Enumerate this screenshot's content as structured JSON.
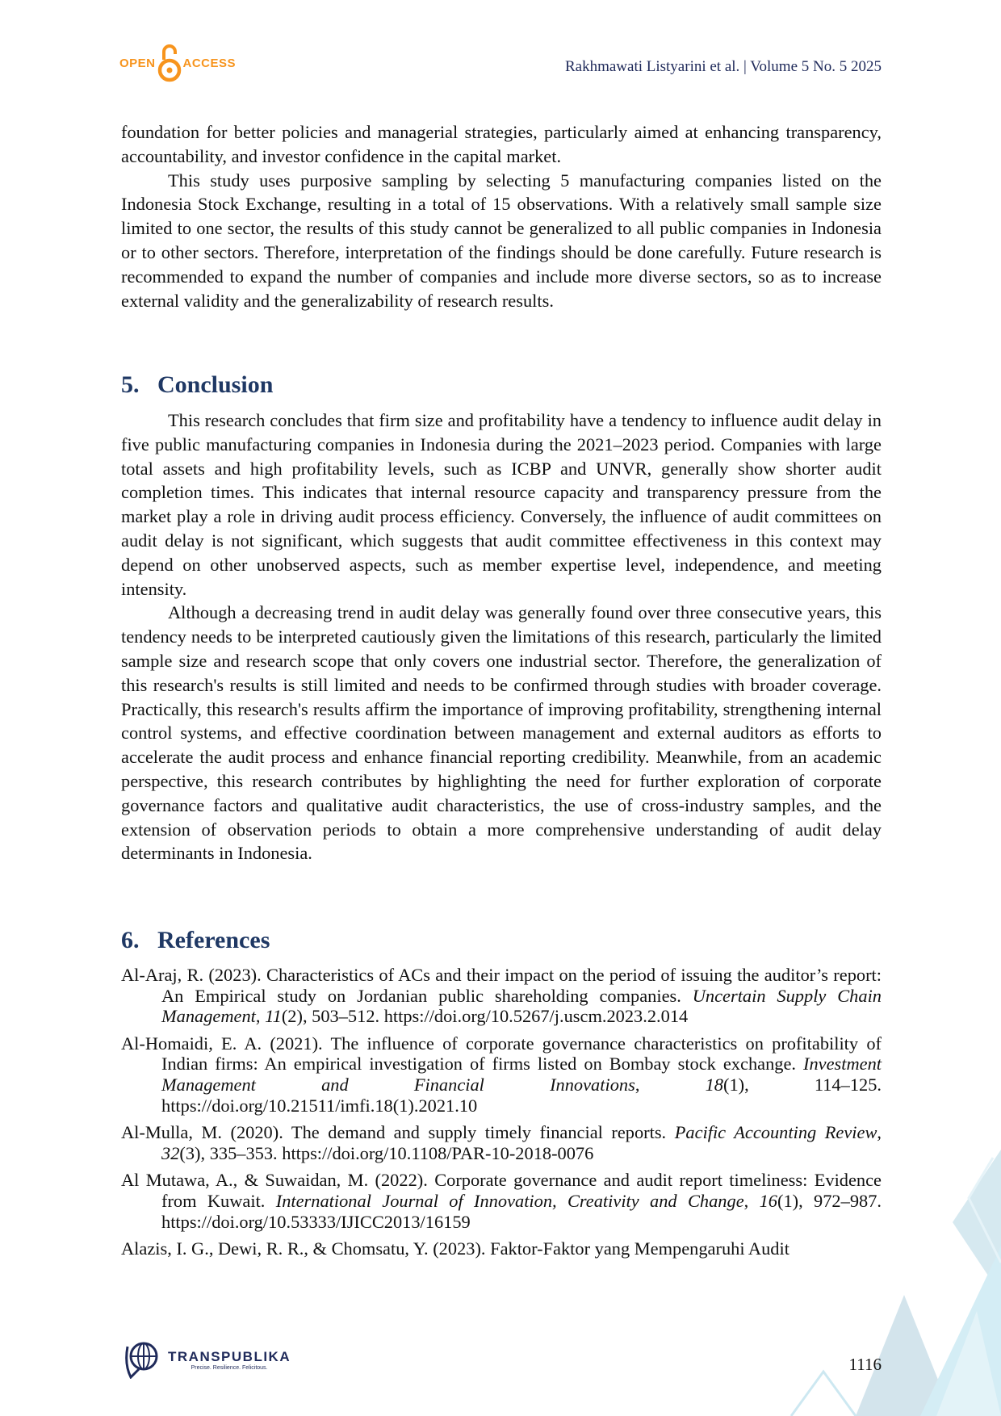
{
  "header": {
    "logo_left": "OPEN",
    "logo_right": "ACCESS",
    "running_head": "Rakhmawati Listyarini et al. | Volume 5 No. 5 2025"
  },
  "intro_paragraphs": [
    "foundation for better policies and managerial strategies, particularly aimed at enhancing transparency, accountability, and investor confidence in the capital market.",
    "This study uses purposive sampling by selecting 5 manufacturing companies listed on the Indonesia Stock Exchange, resulting in a total of 15 observations. With a relatively small sample size limited to one sector, the results of this study cannot be generalized to all public companies in Indonesia or to other sectors. Therefore, interpretation of the findings should be done carefully. Future research is recommended to expand the number of companies and include more diverse sectors, so as to increase external validity and the generalizability of research results."
  ],
  "conclusion": {
    "number": "5.",
    "title": "Conclusion",
    "paragraphs": [
      "This research concludes that firm size and profitability have a tendency to influence audit delay in five public manufacturing companies in Indonesia during the 2021–2023 period. Companies with large total assets and high profitability levels, such as ICBP and UNVR, generally show shorter audit completion times. This indicates that internal resource capacity and transparency pressure from the market play a role in driving audit process efficiency. Conversely, the influence of audit committees on audit delay is not significant, which suggests that audit committee effectiveness in this context may depend on other unobserved aspects, such as member expertise level, independence, and meeting intensity.",
      "Although a decreasing trend in audit delay was generally found over three consecutive years, this tendency needs to be interpreted cautiously given the limitations of this research, particularly the limited sample size and research scope that only covers one industrial sector. Therefore, the generalization of this research's results is still limited and needs to be confirmed through studies with broader coverage. Practically, this research's results affirm the importance of improving profitability, strengthening internal control systems, and effective coordination between management and external auditors as efforts to accelerate the audit process and enhance financial reporting credibility. Meanwhile, from an academic perspective, this research contributes by highlighting the need for further exploration of corporate governance factors and qualitative audit characteristics, the use of cross-industry samples, and the extension of observation periods to obtain a more comprehensive understanding of audit delay determinants in Indonesia."
    ]
  },
  "references": {
    "number": "6.",
    "title": "References",
    "items": [
      {
        "a": "Al-Araj, R. (2023). Characteristics of ACs and their impact on the period of issuing the auditor’s report: An Empirical study on Jordanian public shareholding companies. ",
        "b": "Uncertain Supply Chain Management",
        "c": ", ",
        "d": "11",
        "e": "(2), 503–512. https://doi.org/10.5267/j.uscm.2023.2.014"
      },
      {
        "a": "Al-Homaidi, E. A. (2021). The influence of corporate governance characteristics on profitability of Indian firms: An empirical investigation of firms listed on Bombay stock exchange. ",
        "b": "Investment Management and Financial Innovations",
        "c": ", ",
        "d": "18",
        "e": "(1), 114–125. https://doi.org/10.21511/imfi.18(1).2021.10"
      },
      {
        "a": "Al-Mulla, M. (2020). The demand and supply timely financial reports. ",
        "b": "Pacific Accounting Review",
        "c": ", ",
        "d": "32",
        "e": "(3), 335–353. https://doi.org/10.1108/PAR-10-2018-0076"
      },
      {
        "a": "Al Mutawa, A., & Suwaidan, M. (2022). Corporate governance and audit report timeliness: Evidence from Kuwait. ",
        "b": "International Journal of Innovation, Creativity and Change",
        "c": ", ",
        "d": "16",
        "e": "(1), 972–987. https://doi.org/10.53333/IJICC2013/16159"
      },
      {
        "a": "Alazis, I. G., Dewi, R. R., & Chomsatu, Y. (2023). Faktor-Faktor yang Mempengaruhi Audit",
        "b": "",
        "c": "",
        "d": "",
        "e": ""
      }
    ]
  },
  "footer": {
    "brand": "TRANSPUBLIKA",
    "tagline": "Precise. Resilience. Felicitous.",
    "page_number": "1116"
  },
  "colors": {
    "heading": "#1f3864",
    "running_head": "#1f2a5a",
    "open_access": "#f7941d",
    "decoration": "#cfe6ef"
  }
}
